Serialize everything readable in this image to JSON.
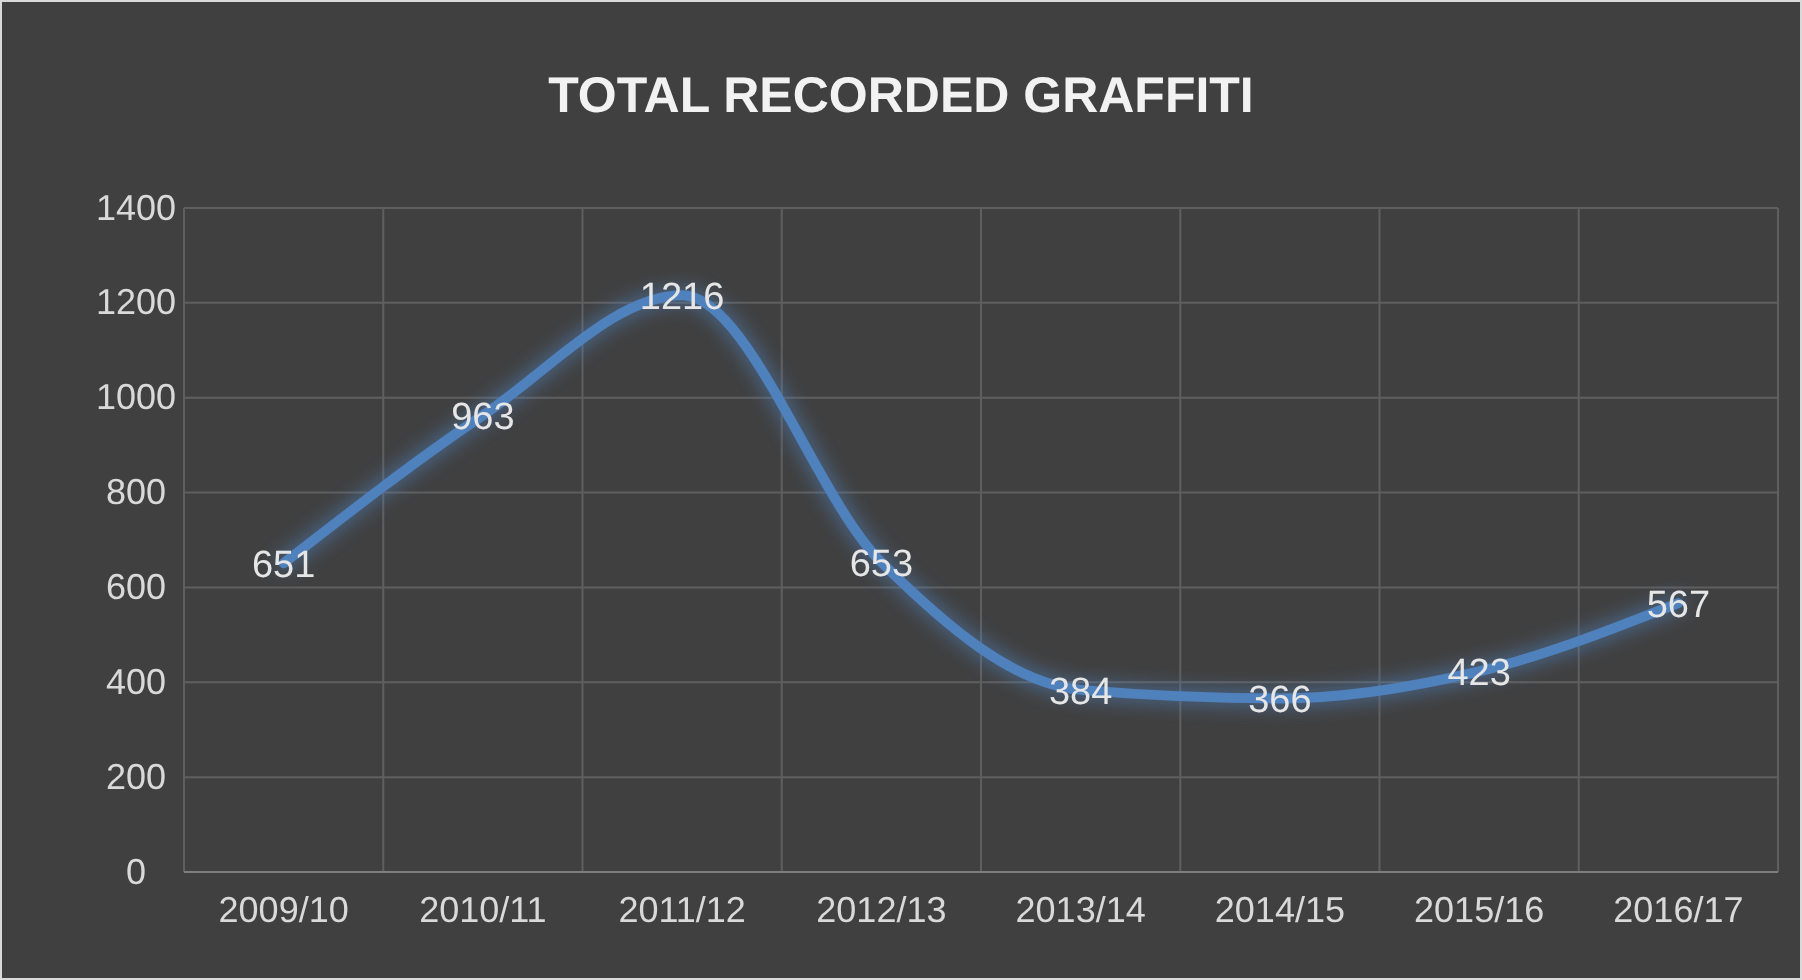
{
  "chart_data": {
    "type": "line",
    "title": "TOTAL RECORDED GRAFFITI",
    "categories": [
      "2009/10",
      "2010/11",
      "2011/12",
      "2012/13",
      "2013/14",
      "2014/15",
      "2015/16",
      "2016/17"
    ],
    "series": [
      {
        "color": "#4f81bd",
        "values": [
          651,
          963,
          1216,
          653,
          384,
          366,
          423,
          567
        ]
      }
    ],
    "ylim": [
      0,
      1400
    ],
    "yticks": [
      0,
      200,
      400,
      600,
      800,
      1000,
      1200,
      1400
    ],
    "grid": true,
    "data_labels": true,
    "marker": "none",
    "line_style": "solid"
  }
}
